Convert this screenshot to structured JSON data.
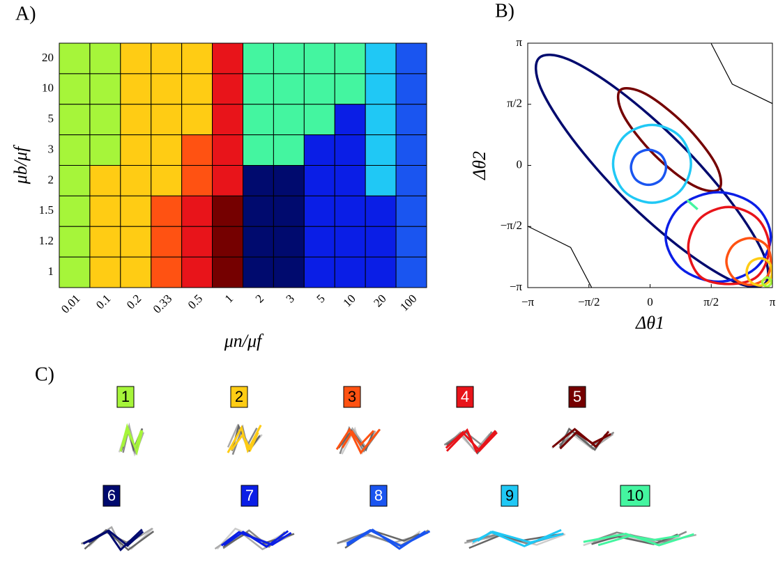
{
  "panels": {
    "a": "A)",
    "b": "B)",
    "c": "C)"
  },
  "regimes": [
    {
      "label": "1",
      "color": "#a6f53a"
    },
    {
      "label": "2",
      "color": "#ffcc14"
    },
    {
      "label": "3",
      "color": "#ff5212"
    },
    {
      "label": "4",
      "color": "#e8141a"
    },
    {
      "label": "5",
      "color": "#750000"
    },
    {
      "label": "6",
      "color": "#000a6e"
    },
    {
      "label": "7",
      "color": "#0a1ee6"
    },
    {
      "label": "8",
      "color": "#1a55f0"
    },
    {
      "label": "9",
      "color": "#20c8f5"
    },
    {
      "label": "10",
      "color": "#44f5a0"
    }
  ],
  "chart_data": [
    {
      "type": "heatmap",
      "x_label": "μn/μf",
      "y_label": "μb/μf",
      "x_categories": [
        "0.01",
        "0.1",
        "0.2",
        "0.33",
        "0.5",
        "1",
        "2",
        "3",
        "5",
        "10",
        "20",
        "100"
      ],
      "y_categories": [
        "20",
        "10",
        "5",
        "3",
        "2",
        "1.5",
        "1.2",
        "1"
      ],
      "z": [
        [
          1,
          1,
          2,
          2,
          2,
          4,
          10,
          10,
          10,
          10,
          9,
          8
        ],
        [
          1,
          1,
          2,
          2,
          2,
          4,
          10,
          10,
          10,
          10,
          9,
          8
        ],
        [
          1,
          1,
          2,
          2,
          2,
          4,
          10,
          10,
          10,
          7,
          9,
          8
        ],
        [
          1,
          1,
          2,
          2,
          3,
          4,
          10,
          10,
          7,
          7,
          9,
          8
        ],
        [
          1,
          2,
          2,
          2,
          3,
          4,
          6,
          6,
          7,
          7,
          9,
          8
        ],
        [
          1,
          2,
          2,
          3,
          4,
          5,
          6,
          6,
          7,
          7,
          7,
          8
        ],
        [
          1,
          2,
          2,
          3,
          4,
          5,
          6,
          6,
          7,
          7,
          7,
          8
        ],
        [
          1,
          2,
          2,
          3,
          4,
          5,
          6,
          6,
          7,
          7,
          7,
          8
        ]
      ]
    },
    {
      "type": "line",
      "x_label": "Δθ1",
      "y_label": "Δθ2",
      "xlim": [
        -3.1416,
        3.1416
      ],
      "ylim": [
        -3.1416,
        3.1416
      ],
      "xticks": [
        {
          "value": -3.1416,
          "label": "−π"
        },
        {
          "value": -1.5708,
          "label": "−π/2"
        },
        0,
        {
          "value": 1.5708,
          "label": "π/2"
        },
        {
          "value": 3.1416,
          "label": "π"
        }
      ],
      "yticks": [
        {
          "value": -3.1416,
          "label": "−π"
        },
        {
          "value": -1.5708,
          "label": "−π/2"
        },
        0,
        {
          "value": 1.5708,
          "label": "π/2"
        },
        {
          "value": 3.1416,
          "label": "π"
        }
      ],
      "series": [
        {
          "color": "#000000",
          "closed": false,
          "x": [
            1.57,
            2.11,
            3.14
          ],
          "y": [
            3.13,
            2.09,
            1.59
          ]
        },
        {
          "color": "#000000",
          "closed": false,
          "x": [
            -3.13,
            -2.04,
            -1.5
          ],
          "y": [
            -1.57,
            -2.11,
            -3.14
          ]
        },
        {
          "color": "#000a6e",
          "closed": true,
          "x": [
            2.95,
            2.92,
            2.11,
            0.76,
            -0.79,
            -2.11,
            -2.85,
            -2.82,
            -2.01,
            -0.66,
            0.89,
            2.21
          ],
          "y": [
            -3.04,
            -2.3,
            -0.98,
            0.57,
            1.92,
            2.73,
            2.76,
            2.02,
            0.7,
            -0.85,
            -2.2,
            -3.01
          ]
        },
        {
          "color": "#750000",
          "closed": true,
          "x": [
            1.77,
            1.68,
            0.89,
            -0.12,
            -0.77,
            -0.68,
            0.11,
            1.12
          ],
          "y": [
            -0.61,
            0.04,
            1.05,
            1.84,
            1.93,
            1.28,
            0.27,
            -0.52
          ]
        },
        {
          "color": "#20c8f5",
          "closed": true,
          "x": [
            1.05,
            0.76,
            0.05,
            -0.66,
            -0.95,
            -0.66,
            0.05,
            0.76
          ],
          "y": [
            0.04,
            0.75,
            1.04,
            0.75,
            0.04,
            -0.67,
            -0.96,
            -0.67
          ]
        },
        {
          "color": "#1a55f0",
          "closed": true,
          "x": [
            0.41,
            0.28,
            -0.04,
            -0.36,
            -0.49,
            -0.36,
            -0.04,
            0.28
          ],
          "y": [
            -0.05,
            0.27,
            0.4,
            0.27,
            -0.05,
            -0.37,
            -0.5,
            -0.37
          ]
        },
        {
          "color": "#0a1ee6",
          "closed": true,
          "x": [
            3.1,
            2.7,
            1.75,
            0.8,
            0.4,
            0.8,
            1.75,
            2.7
          ],
          "y": [
            -1.84,
            -1.03,
            -0.69,
            -1.03,
            -1.84,
            -2.65,
            -2.99,
            -2.65
          ]
        },
        {
          "color": "#e8141a",
          "closed": true,
          "x": [
            3.06,
            2.76,
            2.02,
            1.28,
            0.98,
            1.28,
            2.02,
            2.76
          ],
          "y": [
            -2.11,
            -1.37,
            -1.07,
            -1.37,
            -2.11,
            -2.85,
            -3.05,
            -2.85
          ]
        },
        {
          "color": "#ff5212",
          "closed": true,
          "x": [
            3.1,
            2.98,
            2.56,
            2.14,
            1.96,
            2.14,
            2.56,
            2.98
          ],
          "y": [
            -2.47,
            -2.05,
            -1.87,
            -2.05,
            -2.47,
            -2.89,
            -3.07,
            -2.89
          ]
        },
        {
          "color": "#ffcc14",
          "closed": true,
          "x": [
            3.13,
            3.05,
            2.83,
            2.58,
            2.48,
            2.58,
            2.83,
            3.05
          ],
          "y": [
            -2.74,
            -2.49,
            -2.39,
            -2.49,
            -2.74,
            -2.99,
            -3.09,
            -2.99
          ]
        },
        {
          "color": "#a6f53a",
          "closed": true,
          "x": [
            3.12,
            3.0,
            2.88,
            3.0
          ],
          "y": [
            -3.0,
            -2.88,
            -3.0,
            -3.12
          ]
        },
        {
          "color": "#44f5a0",
          "closed": false,
          "x": [
            0.95,
            1.22
          ],
          "y": [
            -0.89,
            -1.13
          ]
        }
      ]
    }
  ]
}
